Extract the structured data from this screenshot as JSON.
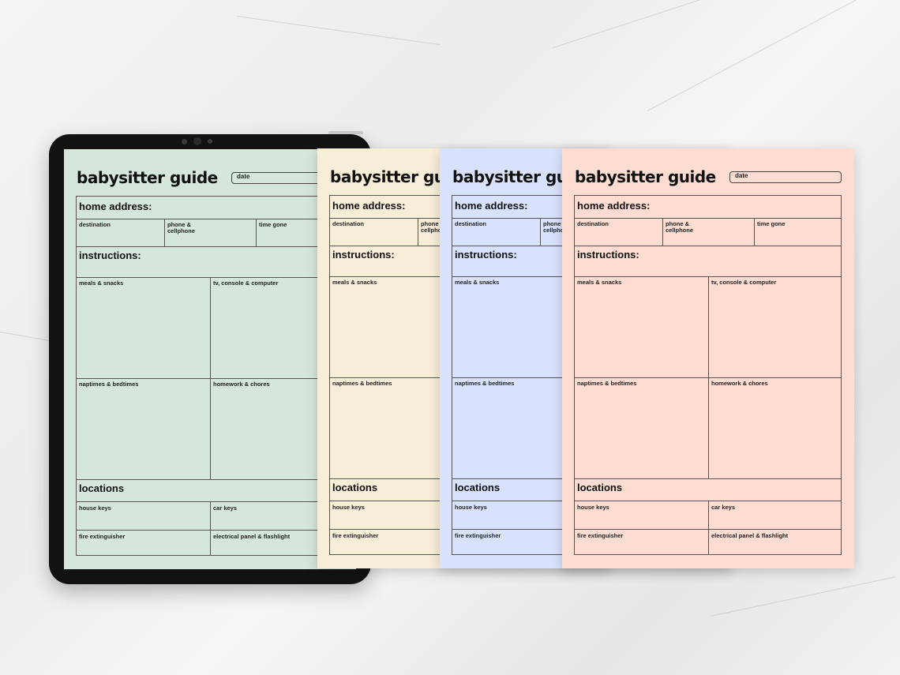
{
  "sheet": {
    "title": "babysitter guide",
    "date_label": "date",
    "home_address_label": "home address:",
    "destination_label": "destination",
    "phone_label": "phone & cellphone",
    "time_gone_label": "time gone",
    "instructions_label": "instructions:",
    "meals_label": "meals & snacks",
    "tv_label": "tv, console & computer",
    "naptimes_label": "naptimes & bedtimes",
    "homework_label": "homework & chores",
    "locations_label": "locations",
    "house_keys_label": "house keys",
    "car_keys_label": "car keys",
    "fire_label": "fire extinguisher",
    "electrical_label": "electrical panel & flashlight"
  },
  "colors": {
    "green": "#d5e6da",
    "cream": "#f7eed8",
    "blue": "#d9e2fc",
    "peach": "#fddcd2",
    "tablet_bezel": "#121212"
  }
}
